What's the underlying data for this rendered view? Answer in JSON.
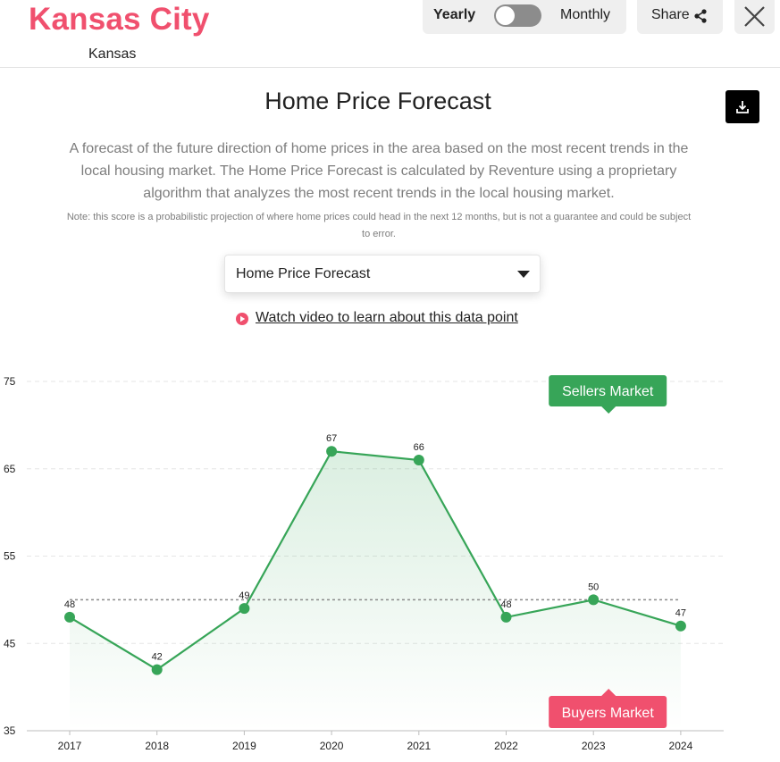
{
  "header": {
    "city": "Kansas City",
    "state": "Kansas",
    "toggle": {
      "left_label": "Yearly",
      "right_label": "Monthly",
      "selected": "Yearly"
    },
    "share_label": "Share"
  },
  "icons": {
    "share": "share-icon",
    "close": "close-icon",
    "download": "download-icon",
    "caret": "caret-down-icon",
    "play": "play-circle-icon"
  },
  "colors": {
    "city": "#f0506e",
    "line": "#37a558",
    "sellers": "#37a558",
    "buyers": "#f0506e",
    "reference": "#8a8a8a"
  },
  "main": {
    "title": "Home Price Forecast",
    "description": "A forecast of the future direction of home prices in the area based on the most recent trends in the local housing market. The Home Price Forecast is calculated by Reventure using a proprietary algorithm that analyzes the most recent trends in the local housing market.",
    "note": "Note: this score is a probabilistic projection of where home prices could head in the next 12 months, but is not a guarantee and could be subject to error.",
    "select_value": "Home Price Forecast",
    "video_link": "Watch video to learn about this data point"
  },
  "chart_data": {
    "type": "line",
    "categories": [
      "2017",
      "2018",
      "2019",
      "2020",
      "2021",
      "2022",
      "2023",
      "2024"
    ],
    "values": [
      48,
      42,
      49,
      67,
      66,
      48,
      50,
      47
    ],
    "data_labels": [
      "48",
      "42",
      "49",
      "67",
      "66",
      "48",
      "50",
      "47"
    ],
    "ylim": [
      35,
      75
    ],
    "yticks": [
      35,
      45,
      55,
      65,
      75
    ],
    "reference_line": 50,
    "grid": true,
    "area_fill": true,
    "annotations": {
      "upper": "Sellers Market",
      "lower": "Buyers Market"
    }
  }
}
